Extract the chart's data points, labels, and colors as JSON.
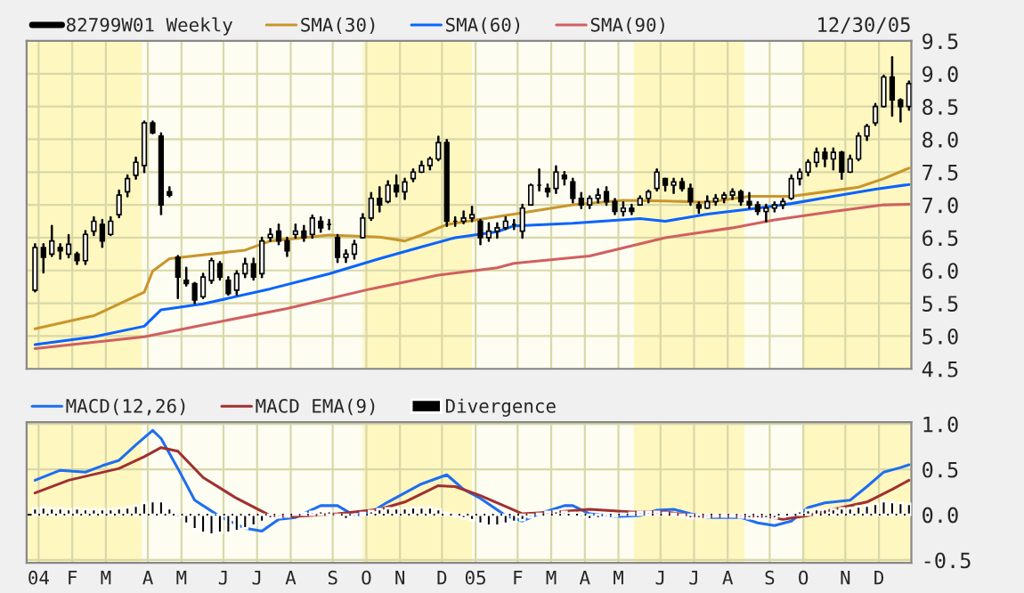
{
  "chart_data": [
    {
      "type": "candlestick",
      "legend": "top left",
      "grid": true,
      "tick_labels": "y",
      "annotations": [
        "12/30/05"
      ],
      "xlim": [
        "2003-12-26",
        "2006-01-01"
      ],
      "ylim": [
        4.5,
        9.5
      ],
      "yticks": [
        4.5,
        {
          "value": 5,
          "label": "5.0"
        },
        5.5,
        {
          "value": 6,
          "label": "6.0"
        },
        6.5,
        {
          "value": 7,
          "label": "7.0"
        },
        7.5,
        {
          "value": 8,
          "label": "8.0"
        },
        8.5,
        {
          "value": 9,
          "label": "9.0"
        },
        9.5
      ],
      "xticks": [
        {
          "value": "2004-01-05",
          "label": null
        },
        {
          "value": "2004-02-02",
          "label": null
        },
        {
          "value": "2004-03-01",
          "label": null
        },
        {
          "value": "2004-04-05",
          "label": null
        },
        {
          "value": "2004-05-03",
          "label": null
        },
        {
          "value": "2004-06-07",
          "label": null
        },
        {
          "value": "2004-07-05",
          "label": null
        },
        {
          "value": "2004-08-02",
          "label": null
        },
        {
          "value": "2004-09-06",
          "label": null
        },
        {
          "value": "2004-10-04",
          "label": null
        },
        {
          "value": "2004-11-01",
          "label": null
        },
        {
          "value": "2004-12-06",
          "label": null
        },
        {
          "value": "2005-01-03",
          "label": null
        },
        {
          "value": "2005-02-07",
          "label": null
        },
        {
          "value": "2005-03-07",
          "label": null
        },
        {
          "value": "2005-04-04",
          "label": null
        },
        {
          "value": "2005-05-02",
          "label": null
        },
        {
          "value": "2005-06-06",
          "label": null
        },
        {
          "value": "2005-07-04",
          "label": null
        },
        {
          "value": "2005-08-01",
          "label": null
        },
        {
          "value": "2005-09-05",
          "label": null
        },
        {
          "value": "2005-10-03",
          "label": null
        },
        {
          "value": "2005-11-07",
          "label": null
        },
        {
          "value": "2005-12-05",
          "label": null
        }
      ],
      "bands": [
        {
          "axis": "x",
          "from": "2003-12-26",
          "to": "2004-03-31",
          "label": null,
          "color": "#fff7c0"
        },
        {
          "axis": "x",
          "from": "2004-10-01",
          "to": "2004-12-31",
          "label": null,
          "color": "#fff7c0"
        },
        {
          "axis": "x",
          "from": "2005-05-15",
          "to": "2005-08-15",
          "label": null,
          "color": "#fff7c0"
        },
        {
          "axis": "x",
          "from": "2005-10-03",
          "to": "2006-01-01",
          "label": null,
          "color": "#fff7c0"
        }
      ],
      "legend_title": "82799W01 Weekly",
      "x": [
        "2004-01-02",
        "2004-01-09",
        "2004-01-16",
        "2004-01-23",
        "2004-01-30",
        "2004-02-06",
        "2004-02-13",
        "2004-02-20",
        "2004-02-27",
        "2004-03-05",
        "2004-03-12",
        "2004-03-19",
        "2004-03-26",
        "2004-04-02",
        "2004-04-09",
        "2004-04-16",
        "2004-04-23",
        "2004-04-30",
        "2004-05-07",
        "2004-05-14",
        "2004-05-21",
        "2004-05-28",
        "2004-06-04",
        "2004-06-11",
        "2004-06-18",
        "2004-06-25",
        "2004-07-02",
        "2004-07-09",
        "2004-07-16",
        "2004-07-23",
        "2004-07-30",
        "2004-08-06",
        "2004-08-13",
        "2004-08-20",
        "2004-08-27",
        "2004-09-03",
        "2004-09-10",
        "2004-09-17",
        "2004-09-24",
        "2004-10-01",
        "2004-10-08",
        "2004-10-15",
        "2004-10-22",
        "2004-10-29",
        "2004-11-05",
        "2004-11-12",
        "2004-11-19",
        "2004-11-26",
        "2004-12-03",
        "2004-12-10",
        "2004-12-17",
        "2004-12-24",
        "2004-12-31",
        "2005-01-07",
        "2005-01-14",
        "2005-01-21",
        "2005-01-28",
        "2005-02-04",
        "2005-02-11",
        "2005-02-18",
        "2005-02-25",
        "2005-03-04",
        "2005-03-11",
        "2005-03-18",
        "2005-03-25",
        "2005-04-01",
        "2005-04-08",
        "2005-04-15",
        "2005-04-22",
        "2005-04-29",
        "2005-05-06",
        "2005-05-13",
        "2005-05-20",
        "2005-05-27",
        "2005-06-03",
        "2005-06-10",
        "2005-06-17",
        "2005-06-24",
        "2005-07-01",
        "2005-07-08",
        "2005-07-15",
        "2005-07-22",
        "2005-07-29",
        "2005-08-05",
        "2005-08-12",
        "2005-08-19",
        "2005-08-26",
        "2005-09-02",
        "2005-09-09",
        "2005-09-16",
        "2005-09-23",
        "2005-09-30",
        "2005-10-07",
        "2005-10-14",
        "2005-10-21",
        "2005-10-28",
        "2005-11-04",
        "2005-11-11",
        "2005-11-18",
        "2005-11-25",
        "2005-12-02",
        "2005-12-09",
        "2005-12-16",
        "2005-12-23",
        "2005-12-30"
      ],
      "ohlc": [
        [
          5.7,
          6.4,
          5.68,
          6.35
        ],
        [
          6.35,
          6.4,
          5.97,
          6.2
        ],
        [
          6.25,
          6.68,
          6.22,
          6.45
        ],
        [
          6.35,
          6.4,
          6.18,
          6.3
        ],
        [
          6.25,
          6.54,
          6.2,
          6.4
        ],
        [
          6.25,
          6.27,
          6.1,
          6.15
        ],
        [
          6.15,
          6.6,
          6.1,
          6.55
        ],
        [
          6.6,
          6.81,
          6.54,
          6.75
        ],
        [
          6.7,
          6.77,
          6.36,
          6.45
        ],
        [
          6.55,
          6.81,
          6.54,
          6.75
        ],
        [
          6.85,
          7.22,
          6.81,
          7.15
        ],
        [
          7.2,
          7.45,
          7.13,
          7.4
        ],
        [
          7.45,
          7.72,
          7.4,
          7.65
        ],
        [
          7.6,
          8.27,
          7.5,
          8.25
        ],
        [
          8.25,
          8.27,
          8.09,
          8.1
        ],
        [
          8.05,
          8.09,
          6.86,
          7.0
        ],
        [
          7.2,
          7.27,
          7.13,
          7.15
        ],
        [
          6.2,
          6.22,
          5.58,
          5.9
        ],
        [
          5.85,
          6.04,
          5.77,
          5.8
        ],
        [
          5.8,
          5.81,
          5.5,
          5.55
        ],
        [
          5.6,
          5.95,
          5.58,
          5.9
        ],
        [
          5.85,
          6.18,
          5.81,
          6.15
        ],
        [
          6.1,
          6.13,
          5.86,
          5.9
        ],
        [
          5.85,
          5.9,
          5.63,
          5.65
        ],
        [
          5.7,
          5.99,
          5.63,
          5.95
        ],
        [
          5.95,
          6.18,
          5.9,
          6.1
        ],
        [
          6.1,
          6.18,
          5.86,
          5.9
        ],
        [
          5.95,
          6.5,
          5.9,
          6.45
        ],
        [
          6.5,
          6.63,
          6.45,
          6.55
        ],
        [
          6.6,
          6.7,
          6.4,
          6.45
        ],
        [
          6.45,
          6.5,
          6.22,
          6.3
        ],
        [
          6.55,
          6.7,
          6.5,
          6.6
        ],
        [
          6.6,
          6.68,
          6.45,
          6.5
        ],
        [
          6.55,
          6.84,
          6.5,
          6.8
        ],
        [
          6.75,
          6.81,
          6.59,
          6.65
        ],
        [
          6.7,
          6.77,
          6.63,
          6.7
        ],
        [
          6.5,
          6.54,
          6.13,
          6.2
        ],
        [
          6.2,
          6.31,
          6.13,
          6.25
        ],
        [
          6.25,
          6.45,
          6.18,
          6.4
        ],
        [
          6.5,
          6.86,
          6.5,
          6.8
        ],
        [
          6.8,
          7.18,
          6.77,
          7.1
        ],
        [
          7.1,
          7.27,
          6.9,
          7.0
        ],
        [
          7.05,
          7.36,
          7.04,
          7.3
        ],
        [
          7.3,
          7.45,
          7.13,
          7.2
        ],
        [
          7.2,
          7.4,
          7.09,
          7.35
        ],
        [
          7.4,
          7.54,
          7.36,
          7.5
        ],
        [
          7.5,
          7.66,
          7.5,
          7.6
        ],
        [
          7.6,
          7.72,
          7.54,
          7.7
        ],
        [
          7.7,
          8.04,
          7.68,
          7.95
        ],
        [
          7.95,
          7.99,
          6.68,
          6.75
        ],
        [
          6.75,
          6.81,
          6.68,
          6.75
        ],
        [
          6.75,
          6.9,
          6.72,
          6.8
        ],
        [
          6.8,
          6.97,
          6.75,
          6.85
        ],
        [
          6.75,
          6.77,
          6.4,
          6.5
        ],
        [
          6.5,
          6.72,
          6.45,
          6.6
        ],
        [
          6.6,
          6.72,
          6.5,
          6.65
        ],
        [
          6.65,
          6.81,
          6.63,
          6.75
        ],
        [
          6.7,
          6.77,
          6.63,
          6.7
        ],
        [
          6.6,
          7.0,
          6.5,
          6.95
        ],
        [
          7.0,
          7.31,
          7.0,
          7.3
        ],
        [
          7.3,
          7.54,
          7.22,
          7.3
        ],
        [
          7.25,
          7.31,
          7.13,
          7.2
        ],
        [
          7.25,
          7.59,
          7.18,
          7.5
        ],
        [
          7.45,
          7.5,
          7.31,
          7.4
        ],
        [
          7.35,
          7.4,
          7.04,
          7.1
        ],
        [
          7.1,
          7.18,
          6.95,
          7.0
        ],
        [
          7.0,
          7.13,
          6.95,
          7.1
        ],
        [
          7.1,
          7.24,
          7.04,
          7.15
        ],
        [
          7.2,
          7.27,
          7.0,
          7.05
        ],
        [
          7.05,
          7.09,
          6.86,
          6.9
        ],
        [
          6.9,
          7.04,
          6.84,
          6.95
        ],
        [
          6.95,
          7.0,
          6.86,
          6.9
        ],
        [
          7.0,
          7.13,
          7.0,
          7.1
        ],
        [
          7.1,
          7.22,
          7.04,
          7.2
        ],
        [
          7.25,
          7.54,
          7.22,
          7.5
        ],
        [
          7.4,
          7.4,
          7.22,
          7.3
        ],
        [
          7.3,
          7.4,
          7.18,
          7.35
        ],
        [
          7.35,
          7.4,
          7.22,
          7.25
        ],
        [
          7.25,
          7.31,
          7.0,
          7.05
        ],
        [
          7.0,
          7.04,
          6.88,
          6.95
        ],
        [
          6.95,
          7.13,
          6.95,
          7.05
        ],
        [
          7.05,
          7.15,
          7.0,
          7.1
        ],
        [
          7.1,
          7.18,
          7.04,
          7.15
        ],
        [
          7.15,
          7.24,
          7.09,
          7.2
        ],
        [
          7.2,
          7.22,
          7.0,
          7.05
        ],
        [
          7.05,
          7.18,
          6.95,
          7.0
        ],
        [
          7.0,
          7.04,
          6.86,
          6.9
        ],
        [
          6.9,
          7.0,
          6.75,
          6.95
        ],
        [
          6.95,
          7.04,
          6.9,
          7.0
        ],
        [
          7.0,
          7.09,
          6.95,
          7.05
        ],
        [
          7.1,
          7.45,
          7.09,
          7.4
        ],
        [
          7.4,
          7.54,
          7.31,
          7.5
        ],
        [
          7.5,
          7.68,
          7.45,
          7.65
        ],
        [
          7.65,
          7.86,
          7.59,
          7.8
        ],
        [
          7.8,
          7.86,
          7.59,
          7.7
        ],
        [
          7.7,
          7.86,
          7.54,
          7.8
        ],
        [
          7.8,
          7.81,
          7.4,
          7.5
        ],
        [
          7.5,
          7.75,
          7.5,
          7.7
        ],
        [
          7.7,
          8.09,
          7.68,
          8.05
        ],
        [
          8.05,
          8.22,
          7.99,
          8.2
        ],
        [
          8.25,
          8.54,
          8.22,
          8.5
        ],
        [
          8.5,
          8.97,
          8.5,
          8.95
        ],
        [
          8.95,
          9.25,
          8.36,
          8.6
        ],
        [
          8.6,
          8.61,
          8.27,
          8.5
        ],
        [
          8.5,
          8.88,
          8.45,
          8.85
        ]
      ],
      "series": [
        {
          "name": "SMA(30)",
          "type": "line",
          "color": "#c8962c",
          "x": [
            "2004-01-02",
            "2004-02-20",
            "2004-04-02",
            "2004-04-09",
            "2004-04-23",
            "2004-06-25",
            "2004-07-16",
            "2004-09-03",
            "2004-10-15",
            "2004-11-05",
            "2004-11-19",
            "2004-12-10",
            "2005-01-07",
            "2005-02-04",
            "2005-03-25",
            "2005-05-06",
            "2005-06-10",
            "2005-07-15",
            "2005-08-19",
            "2005-09-23",
            "2005-10-21",
            "2005-11-18",
            "2005-12-09",
            "2005-12-30"
          ],
          "values": [
            5.11,
            5.31,
            5.67,
            5.99,
            6.18,
            6.31,
            6.45,
            6.54,
            6.51,
            6.45,
            6.54,
            6.7,
            6.78,
            6.86,
            7.0,
            7.07,
            7.06,
            7.04,
            7.13,
            7.13,
            7.2,
            7.27,
            7.4,
            7.56
          ]
        },
        {
          "name": "SMA(60)",
          "type": "line",
          "color": "#0a64ff",
          "x": [
            "2004-01-02",
            "2004-02-20",
            "2004-04-02",
            "2004-04-16",
            "2004-05-21",
            "2004-07-16",
            "2004-09-03",
            "2004-10-15",
            "2004-11-19",
            "2004-12-17",
            "2005-01-21",
            "2005-02-04",
            "2005-03-25",
            "2005-05-20",
            "2005-06-10",
            "2005-07-15",
            "2005-08-26",
            "2005-09-23",
            "2005-10-28",
            "2005-12-02",
            "2005-12-30"
          ],
          "values": [
            4.87,
            4.99,
            5.15,
            5.4,
            5.49,
            5.72,
            5.95,
            6.18,
            6.36,
            6.5,
            6.59,
            6.68,
            6.72,
            6.79,
            6.75,
            6.86,
            6.95,
            7.02,
            7.13,
            7.24,
            7.31
          ]
        },
        {
          "name": "SMA(90)",
          "type": "line",
          "color": "#d06060",
          "x": [
            "2004-01-02",
            "2004-04-02",
            "2004-05-21",
            "2004-07-30",
            "2004-10-08",
            "2004-12-03",
            "2005-01-21",
            "2005-02-04",
            "2005-04-08",
            "2005-06-10",
            "2005-08-05",
            "2005-09-09",
            "2005-10-28",
            "2005-12-09",
            "2005-12-30"
          ],
          "values": [
            4.81,
            4.99,
            5.17,
            5.42,
            5.72,
            5.93,
            6.04,
            6.11,
            6.22,
            6.5,
            6.65,
            6.77,
            6.9,
            7.0,
            7.01
          ]
        }
      ]
    },
    {
      "type": "line",
      "legend": "top left",
      "grid": true,
      "xlim": [
        "2003-12-26",
        "2006-01-01"
      ],
      "ylim": [
        -0.53,
        1.02
      ],
      "yticks": [
        -0.5,
        {
          "value": 0,
          "label": "0.0"
        },
        0.5,
        {
          "value": 1,
          "label": "1.0"
        }
      ],
      "xticks": [
        {
          "value": "2004-01-05",
          "label": "04"
        },
        {
          "value": "2004-02-02",
          "label": "F"
        },
        {
          "value": "2004-03-01",
          "label": "M"
        },
        {
          "value": "2004-04-05",
          "label": "A"
        },
        {
          "value": "2004-05-03",
          "label": "M"
        },
        {
          "value": "2004-06-07",
          "label": "J"
        },
        {
          "value": "2004-07-05",
          "label": "J"
        },
        {
          "value": "2004-08-02",
          "label": "A"
        },
        {
          "value": "2004-09-06",
          "label": "S"
        },
        {
          "value": "2004-10-04",
          "label": "O"
        },
        {
          "value": "2004-11-01",
          "label": "N"
        },
        {
          "value": "2004-12-06",
          "label": "D"
        },
        {
          "value": "2005-01-03",
          "label": "05"
        },
        {
          "value": "2005-02-07",
          "label": "F"
        },
        {
          "value": "2005-03-07",
          "label": "M"
        },
        {
          "value": "2005-04-04",
          "label": "A"
        },
        {
          "value": "2005-05-02",
          "label": "M"
        },
        {
          "value": "2005-06-06",
          "label": "J"
        },
        {
          "value": "2005-07-04",
          "label": "J"
        },
        {
          "value": "2005-08-01",
          "label": "A"
        },
        {
          "value": "2005-09-05",
          "label": "S"
        },
        {
          "value": "2005-10-03",
          "label": "O"
        },
        {
          "value": "2005-11-07",
          "label": "N"
        },
        {
          "value": "2005-12-05",
          "label": "D"
        }
      ],
      "bands": [
        {
          "axis": "x",
          "from": "2003-12-26",
          "to": "2004-03-31",
          "label": null,
          "color": "#fff7c0"
        },
        {
          "axis": "x",
          "from": "2004-10-01",
          "to": "2004-12-31",
          "label": null,
          "color": "#fff7c0"
        },
        {
          "axis": "x",
          "from": "2005-05-15",
          "to": "2005-08-15",
          "label": null,
          "color": "#fff7c0"
        },
        {
          "axis": "x",
          "from": "2005-10-03",
          "to": "2006-01-01",
          "label": null,
          "color": "#fff7c0"
        }
      ],
      "ref_lines": [
        {
          "axis": "y",
          "value": 0.0,
          "label": null,
          "color": "#000000",
          "line_style": "solid"
        }
      ],
      "series": [
        {
          "name": "MACD(12,26)",
          "color": "#1e6ef0",
          "x": [
            "2004-01-02",
            "2004-01-23",
            "2004-02-13",
            "2004-02-27",
            "2004-03-12",
            "2004-03-26",
            "2004-04-09",
            "2004-04-16",
            "2004-04-30",
            "2004-05-14",
            "2004-06-04",
            "2004-06-25",
            "2004-07-09",
            "2004-07-23",
            "2004-08-06",
            "2004-08-27",
            "2004-09-10",
            "2004-09-24",
            "2004-10-08",
            "2004-10-22",
            "2004-11-19",
            "2004-12-10",
            "2004-12-24",
            "2005-01-07",
            "2005-01-28",
            "2005-02-11",
            "2005-02-25",
            "2005-03-18",
            "2005-03-25",
            "2005-04-08",
            "2005-04-29",
            "2005-05-20",
            "2005-06-03",
            "2005-06-17",
            "2005-07-01",
            "2005-07-15",
            "2005-08-12",
            "2005-08-26",
            "2005-09-09",
            "2005-09-23",
            "2005-10-07",
            "2005-10-21",
            "2005-11-11",
            "2005-11-25",
            "2005-12-09",
            "2005-12-23",
            "2005-12-30"
          ],
          "values": [
            0.38,
            0.49,
            0.47,
            0.54,
            0.6,
            0.77,
            0.93,
            0.84,
            0.51,
            0.16,
            -0.02,
            -0.15,
            -0.18,
            -0.05,
            -0.03,
            0.1,
            0.1,
            -0.01,
            0.03,
            0.14,
            0.34,
            0.44,
            0.28,
            0.18,
            -0.01,
            -0.07,
            0.01,
            0.1,
            0.1,
            0.01,
            -0.02,
            -0.01,
            0.05,
            0.06,
            0.01,
            -0.03,
            -0.03,
            -0.09,
            -0.12,
            -0.07,
            0.08,
            0.13,
            0.16,
            0.31,
            0.47,
            0.52,
            0.55
          ]
        },
        {
          "name": "MACD EMA(9)",
          "color": "#a03030",
          "x": [
            "2004-01-02",
            "2004-01-30",
            "2004-03-12",
            "2004-04-02",
            "2004-04-16",
            "2004-04-30",
            "2004-05-21",
            "2004-06-18",
            "2004-07-16",
            "2004-08-06",
            "2004-09-10",
            "2004-10-15",
            "2004-11-05",
            "2004-12-03",
            "2004-12-17",
            "2005-01-07",
            "2005-02-04",
            "2005-02-11",
            "2005-03-11",
            "2005-04-08",
            "2005-05-13",
            "2005-06-10",
            "2005-07-08",
            "2005-08-05",
            "2005-09-02",
            "2005-09-16",
            "2005-10-07",
            "2005-10-28",
            "2005-11-25",
            "2005-12-16",
            "2005-12-30"
          ],
          "values": [
            0.24,
            0.38,
            0.51,
            0.64,
            0.74,
            0.7,
            0.41,
            0.18,
            -0.01,
            -0.02,
            0.01,
            0.06,
            0.14,
            0.32,
            0.31,
            0.21,
            0.05,
            0.01,
            0.03,
            0.06,
            0.03,
            0.03,
            -0.02,
            -0.01,
            -0.02,
            -0.05,
            -0.01,
            0.06,
            0.14,
            0.28,
            0.38
          ]
        },
        {
          "name": "Divergence",
          "type": "bar",
          "color": "#000000",
          "x": [
            "2004-01-02",
            "2004-01-09",
            "2004-01-16",
            "2004-01-23",
            "2004-01-30",
            "2004-02-06",
            "2004-02-13",
            "2004-02-20",
            "2004-02-27",
            "2004-03-05",
            "2004-03-12",
            "2004-03-19",
            "2004-03-26",
            "2004-04-02",
            "2004-04-09",
            "2004-04-16",
            "2004-04-23",
            "2004-04-30",
            "2004-05-07",
            "2004-05-14",
            "2004-05-21",
            "2004-05-28",
            "2004-06-04",
            "2004-06-11",
            "2004-06-18",
            "2004-06-25",
            "2004-07-02",
            "2004-07-09",
            "2004-07-16",
            "2004-07-23",
            "2004-07-30",
            "2004-08-06",
            "2004-08-13",
            "2004-08-20",
            "2004-08-27",
            "2004-09-03",
            "2004-09-10",
            "2004-09-17",
            "2004-09-24",
            "2004-10-01",
            "2004-10-08",
            "2004-10-15",
            "2004-10-22",
            "2004-10-29",
            "2004-11-05",
            "2004-11-12",
            "2004-11-19",
            "2004-11-26",
            "2004-12-03",
            "2004-12-10",
            "2004-12-17",
            "2004-12-24",
            "2004-12-31",
            "2005-01-07",
            "2005-01-14",
            "2005-01-21",
            "2005-01-28",
            "2005-02-04",
            "2005-02-11",
            "2005-02-18",
            "2005-02-25",
            "2005-03-04",
            "2005-03-11",
            "2005-03-18",
            "2005-03-25",
            "2005-04-01",
            "2005-04-08",
            "2005-04-15",
            "2005-04-22",
            "2005-04-29",
            "2005-05-06",
            "2005-05-13",
            "2005-05-20",
            "2005-05-27",
            "2005-06-03",
            "2005-06-10",
            "2005-06-17",
            "2005-06-24",
            "2005-07-01",
            "2005-07-08",
            "2005-07-15",
            "2005-07-22",
            "2005-07-29",
            "2005-08-05",
            "2005-08-12",
            "2005-08-19",
            "2005-08-26",
            "2005-09-02",
            "2005-09-09",
            "2005-09-16",
            "2005-09-23",
            "2005-09-30",
            "2005-10-07",
            "2005-10-14",
            "2005-10-21",
            "2005-10-28",
            "2005-11-04",
            "2005-11-11",
            "2005-11-18",
            "2005-11-25",
            "2005-12-02",
            "2005-12-09",
            "2005-12-16",
            "2005-12-23",
            "2005-12-30"
          ],
          "values": [
            0.07,
            0.08,
            0.07,
            0.07,
            0.06,
            0.07,
            0.06,
            0.06,
            0.06,
            0.06,
            0.07,
            0.08,
            0.1,
            0.13,
            0.15,
            0.15,
            0.07,
            -0.03,
            -0.1,
            -0.16,
            -0.2,
            -0.22,
            -0.2,
            -0.2,
            -0.18,
            -0.15,
            -0.12,
            -0.08,
            -0.04,
            -0.03,
            -0.02,
            0.01,
            0.02,
            0.03,
            0.04,
            0.04,
            -0.02,
            -0.05,
            -0.03,
            0.02,
            0.04,
            0.06,
            0.07,
            0.07,
            0.07,
            0.08,
            0.08,
            0.08,
            0.06,
            0.02,
            -0.02,
            -0.04,
            -0.06,
            -0.1,
            -0.12,
            -0.12,
            -0.1,
            -0.08,
            -0.06,
            -0.03,
            0.01,
            0.03,
            0.04,
            0.03,
            0.02,
            -0.03,
            -0.05,
            -0.04,
            -0.03,
            -0.02,
            0.01,
            0.02,
            0.03,
            0.03,
            0.03,
            0.02,
            0.01,
            -0.02,
            -0.04,
            -0.04,
            -0.03,
            -0.02,
            -0.02,
            -0.02,
            -0.03,
            -0.04,
            -0.04,
            -0.04,
            -0.04,
            -0.02,
            0.02,
            0.04,
            0.05,
            0.06,
            0.06,
            0.06,
            0.07,
            0.07,
            0.09,
            0.1,
            0.12,
            0.15,
            0.14,
            0.13,
            0.12
          ]
        }
      ]
    }
  ]
}
